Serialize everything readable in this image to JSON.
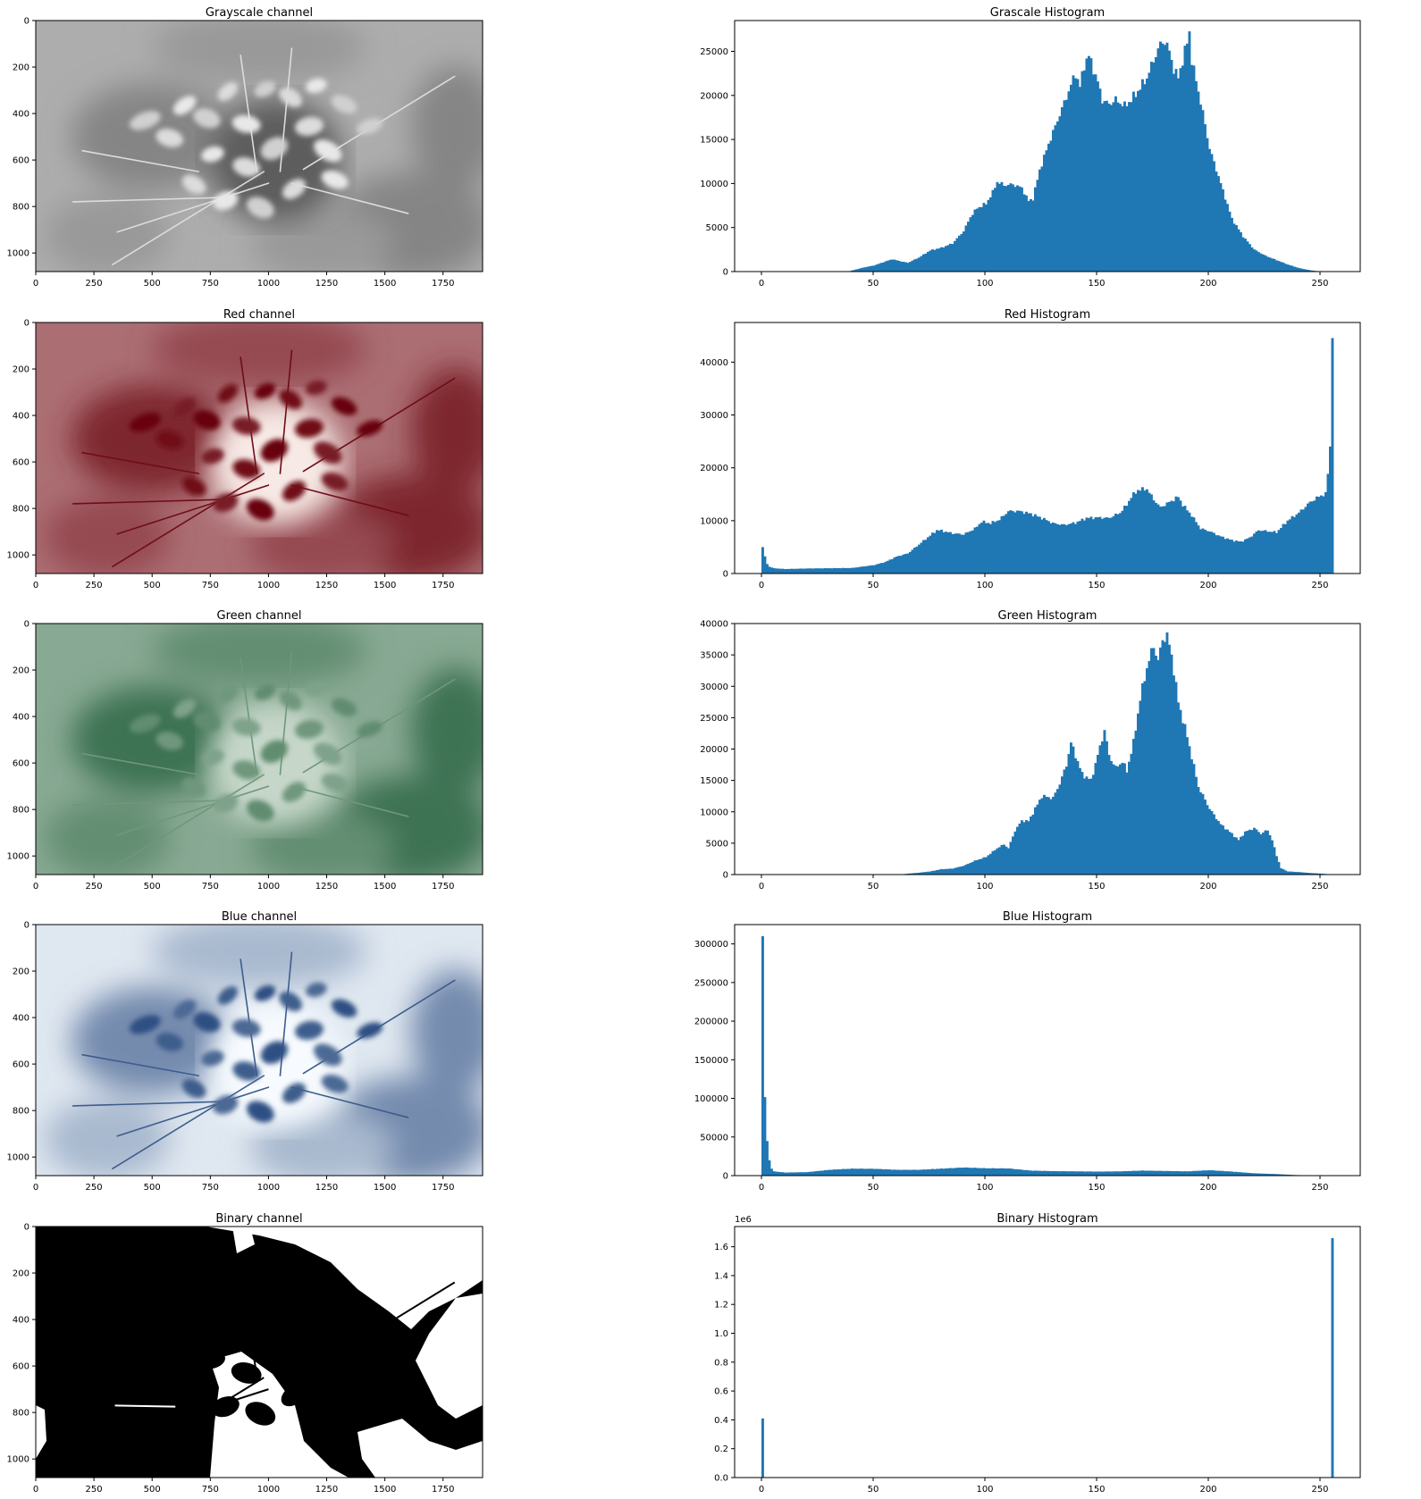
{
  "figure": {
    "image_panels": [
      {
        "title": "Grayscale channel",
        "palette": "gray",
        "colors": [
          "#2a2a2a",
          "#f4f4f4"
        ],
        "xticks": [
          0,
          250,
          500,
          750,
          1000,
          1250,
          1500,
          1750
        ],
        "yticks": [
          0,
          200,
          400,
          600,
          800,
          1000
        ],
        "xlim": [
          0,
          1920
        ],
        "ylim": [
          1080,
          0
        ]
      },
      {
        "title": "Red channel",
        "palette": "red",
        "colors": [
          "#67000d",
          "#fff5f0"
        ],
        "xticks": [
          0,
          250,
          500,
          750,
          1000,
          1250,
          1500,
          1750
        ],
        "yticks": [
          0,
          200,
          400,
          600,
          800,
          1000
        ],
        "xlim": [
          0,
          1920
        ],
        "ylim": [
          1080,
          0
        ]
      },
      {
        "title": "Green channel",
        "palette": "green",
        "colors": [
          "#00441b",
          "#f7fcf5"
        ],
        "xticks": [
          0,
          250,
          500,
          750,
          1000,
          1250,
          1500,
          1750
        ],
        "yticks": [
          0,
          200,
          400,
          600,
          800,
          1000
        ],
        "xlim": [
          0,
          1920
        ],
        "ylim": [
          1080,
          0
        ]
      },
      {
        "title": "Blue channel",
        "palette": "blue",
        "colors": [
          "#08306b",
          "#f7fbff"
        ],
        "xticks": [
          0,
          250,
          500,
          750,
          1000,
          1250,
          1500,
          1750
        ],
        "yticks": [
          0,
          200,
          400,
          600,
          800,
          1000
        ],
        "xlim": [
          0,
          1920
        ],
        "ylim": [
          1080,
          0
        ]
      },
      {
        "title": "Binary channel",
        "palette": "binary",
        "colors": [
          "#000000",
          "#ffffff"
        ],
        "xticks": [
          0,
          250,
          500,
          750,
          1000,
          1250,
          1500,
          1750
        ],
        "yticks": [
          0,
          200,
          400,
          600,
          800,
          1000
        ],
        "xlim": [
          0,
          1920
        ],
        "ylim": [
          1080,
          0
        ]
      }
    ]
  },
  "chart_data": [
    {
      "type": "bar",
      "title": "Grascale Histogram",
      "bar_color": "#1f77b4",
      "xlim": [
        -12,
        268
      ],
      "ylim": [
        0,
        28500
      ],
      "xticks": [
        0,
        50,
        100,
        150,
        200,
        250
      ],
      "yticks": [
        0,
        5000,
        10000,
        15000,
        20000,
        25000
      ],
      "ytick_labels": [
        "0",
        "5000",
        "10000",
        "15000",
        "20000",
        "25000"
      ],
      "offset_label": "",
      "profile": [
        [
          0,
          0
        ],
        [
          38,
          0
        ],
        [
          40,
          120
        ],
        [
          45,
          450
        ],
        [
          50,
          700
        ],
        [
          55,
          1150
        ],
        [
          58,
          1400
        ],
        [
          62,
          1150
        ],
        [
          65,
          1000
        ],
        [
          70,
          1600
        ],
        [
          75,
          2400
        ],
        [
          80,
          2700
        ],
        [
          85,
          3200
        ],
        [
          90,
          4600
        ],
        [
          93,
          6200
        ],
        [
          96,
          7200
        ],
        [
          100,
          7700
        ],
        [
          103,
          9000
        ],
        [
          105,
          10200
        ],
        [
          108,
          9800
        ],
        [
          112,
          9900
        ],
        [
          116,
          9500
        ],
        [
          119,
          8000
        ],
        [
          121,
          8300
        ],
        [
          124,
          11500
        ],
        [
          128,
          14500
        ],
        [
          131,
          16500
        ],
        [
          134,
          18500
        ],
        [
          137,
          20500
        ],
        [
          140,
          22500
        ],
        [
          142,
          21000
        ],
        [
          144,
          23500
        ],
        [
          146,
          24500
        ],
        [
          148,
          23000
        ],
        [
          150,
          21500
        ],
        [
          152,
          19500
        ],
        [
          155,
          19000
        ],
        [
          158,
          19500
        ],
        [
          162,
          18800
        ],
        [
          165,
          19500
        ],
        [
          168,
          20500
        ],
        [
          172,
          22000
        ],
        [
          175,
          24000
        ],
        [
          178,
          25800
        ],
        [
          180,
          26200
        ],
        [
          182,
          25000
        ],
        [
          184,
          23000
        ],
        [
          186,
          22000
        ],
        [
          188,
          24000
        ],
        [
          190,
          26000
        ],
        [
          191,
          27200
        ],
        [
          192,
          24000
        ],
        [
          195,
          20500
        ],
        [
          197,
          18000
        ],
        [
          200,
          14000
        ],
        [
          205,
          10000
        ],
        [
          210,
          6000
        ],
        [
          215,
          4000
        ],
        [
          220,
          2500
        ],
        [
          225,
          1800
        ],
        [
          230,
          1300
        ],
        [
          235,
          800
        ],
        [
          240,
          400
        ],
        [
          245,
          150
        ],
        [
          248,
          60
        ],
        [
          250,
          0
        ],
        [
          255,
          0
        ]
      ]
    },
    {
      "type": "bar",
      "title": "Red Histogram",
      "bar_color": "#1f77b4",
      "xlim": [
        -12,
        268
      ],
      "ylim": [
        0,
        47500
      ],
      "xticks": [
        0,
        50,
        100,
        150,
        200,
        250
      ],
      "yticks": [
        0,
        10000,
        20000,
        30000,
        40000
      ],
      "ytick_labels": [
        "0",
        "10000",
        "20000",
        "30000",
        "40000"
      ],
      "offset_label": "",
      "profile": [
        [
          0,
          5000
        ],
        [
          1,
          3200
        ],
        [
          2,
          1800
        ],
        [
          3,
          1300
        ],
        [
          5,
          1000
        ],
        [
          10,
          850
        ],
        [
          20,
          950
        ],
        [
          30,
          1000
        ],
        [
          40,
          1050
        ],
        [
          50,
          1600
        ],
        [
          55,
          2200
        ],
        [
          60,
          3200
        ],
        [
          65,
          3800
        ],
        [
          70,
          5500
        ],
        [
          75,
          7200
        ],
        [
          78,
          8200
        ],
        [
          80,
          8100
        ],
        [
          85,
          7600
        ],
        [
          90,
          7400
        ],
        [
          95,
          8500
        ],
        [
          98,
          9800
        ],
        [
          102,
          9500
        ],
        [
          106,
          10200
        ],
        [
          110,
          11800
        ],
        [
          115,
          11800
        ],
        [
          120,
          11300
        ],
        [
          125,
          10500
        ],
        [
          130,
          9500
        ],
        [
          135,
          9200
        ],
        [
          140,
          9600
        ],
        [
          145,
          10500
        ],
        [
          150,
          10600
        ],
        [
          155,
          10500
        ],
        [
          160,
          11500
        ],
        [
          163,
          13000
        ],
        [
          165,
          14500
        ],
        [
          168,
          15800
        ],
        [
          172,
          16000
        ],
        [
          175,
          14000
        ],
        [
          178,
          12500
        ],
        [
          182,
          13500
        ],
        [
          186,
          14500
        ],
        [
          188,
          13000
        ],
        [
          192,
          11000
        ],
        [
          196,
          8500
        ],
        [
          200,
          8000
        ],
        [
          205,
          7000
        ],
        [
          210,
          6300
        ],
        [
          214,
          6000
        ],
        [
          218,
          6800
        ],
        [
          222,
          8200
        ],
        [
          226,
          8000
        ],
        [
          230,
          7800
        ],
        [
          235,
          10000
        ],
        [
          240,
          11500
        ],
        [
          245,
          13500
        ],
        [
          250,
          14800
        ],
        [
          252,
          15000
        ],
        [
          253,
          19000
        ],
        [
          254,
          24000
        ],
        [
          255,
          45500
        ]
      ]
    },
    {
      "type": "bar",
      "title": "Green Histogram",
      "bar_color": "#1f77b4",
      "xlim": [
        -12,
        268
      ],
      "ylim": [
        0,
        40000
      ],
      "xticks": [
        0,
        50,
        100,
        150,
        200,
        250
      ],
      "yticks": [
        0,
        5000,
        10000,
        15000,
        20000,
        25000,
        30000,
        35000,
        40000
      ],
      "ytick_labels": [
        "0",
        "5000",
        "10000",
        "15000",
        "20000",
        "25000",
        "30000",
        "35000",
        "40000"
      ],
      "offset_label": "",
      "profile": [
        [
          0,
          0
        ],
        [
          62,
          0
        ],
        [
          65,
          150
        ],
        [
          70,
          300
        ],
        [
          75,
          500
        ],
        [
          80,
          850
        ],
        [
          85,
          950
        ],
        [
          90,
          1400
        ],
        [
          95,
          2200
        ],
        [
          100,
          2800
        ],
        [
          105,
          4200
        ],
        [
          108,
          4800
        ],
        [
          110,
          4200
        ],
        [
          113,
          7000
        ],
        [
          116,
          8600
        ],
        [
          119,
          8500
        ],
        [
          122,
          10500
        ],
        [
          125,
          12500
        ],
        [
          130,
          12200
        ],
        [
          133,
          14500
        ],
        [
          136,
          17500
        ],
        [
          138,
          21000
        ],
        [
          140,
          19000
        ],
        [
          143,
          16000
        ],
        [
          147,
          15000
        ],
        [
          150,
          19000
        ],
        [
          153,
          23000
        ],
        [
          155,
          19000
        ],
        [
          158,
          17000
        ],
        [
          161,
          18000
        ],
        [
          163,
          16500
        ],
        [
          166,
          21000
        ],
        [
          169,
          28000
        ],
        [
          172,
          33000
        ],
        [
          175,
          36500
        ],
        [
          177,
          34000
        ],
        [
          179,
          37500
        ],
        [
          181,
          38000
        ],
        [
          183,
          35000
        ],
        [
          186,
          27500
        ],
        [
          190,
          22000
        ],
        [
          195,
          14000
        ],
        [
          200,
          10500
        ],
        [
          205,
          8000
        ],
        [
          210,
          6500
        ],
        [
          213,
          5500
        ],
        [
          216,
          6800
        ],
        [
          220,
          7400
        ],
        [
          223,
          6500
        ],
        [
          226,
          7100
        ],
        [
          228,
          5500
        ],
        [
          230,
          3000
        ],
        [
          232,
          1000
        ],
        [
          235,
          500
        ],
        [
          240,
          400
        ],
        [
          245,
          250
        ],
        [
          250,
          150
        ],
        [
          255,
          0
        ]
      ]
    },
    {
      "type": "bar",
      "title": "Blue Histogram",
      "bar_color": "#1f77b4",
      "xlim": [
        -12,
        268
      ],
      "ylim": [
        0,
        325000
      ],
      "xticks": [
        0,
        50,
        100,
        150,
        200,
        250
      ],
      "yticks": [
        0,
        50000,
        100000,
        150000,
        200000,
        250000,
        300000
      ],
      "ytick_labels": [
        "0",
        "50000",
        "100000",
        "150000",
        "200000",
        "250000",
        "300000"
      ],
      "offset_label": "",
      "profile": [
        [
          0,
          310000
        ],
        [
          1,
          100000
        ],
        [
          2,
          45000
        ],
        [
          3,
          20000
        ],
        [
          4,
          9000
        ],
        [
          5,
          5500
        ],
        [
          10,
          4000
        ],
        [
          20,
          4500
        ],
        [
          30,
          7500
        ],
        [
          40,
          9000
        ],
        [
          50,
          8800
        ],
        [
          60,
          7500
        ],
        [
          70,
          7500
        ],
        [
          80,
          9000
        ],
        [
          90,
          10500
        ],
        [
          100,
          9500
        ],
        [
          110,
          9300
        ],
        [
          120,
          6500
        ],
        [
          130,
          5800
        ],
        [
          140,
          5500
        ],
        [
          150,
          5200
        ],
        [
          160,
          5500
        ],
        [
          170,
          6500
        ],
        [
          180,
          6000
        ],
        [
          190,
          5500
        ],
        [
          200,
          7000
        ],
        [
          210,
          5200
        ],
        [
          220,
          3000
        ],
        [
          230,
          2000
        ],
        [
          238,
          800
        ],
        [
          245,
          200
        ],
        [
          250,
          0
        ],
        [
          255,
          0
        ]
      ]
    },
    {
      "type": "bar",
      "title": "Binary Histogram",
      "bar_color": "#1f77b4",
      "xlim": [
        -12,
        268
      ],
      "ylim": [
        0,
        1740000
      ],
      "xticks": [
        0,
        50,
        100,
        150,
        200,
        250
      ],
      "yticks": [
        0,
        200000,
        400000,
        600000,
        800000,
        1000000,
        1200000,
        1400000,
        1600000
      ],
      "ytick_labels": [
        "0.0",
        "0.2",
        "0.4",
        "0.6",
        "0.8",
        "1.0",
        "1.2",
        "1.4",
        "1.6"
      ],
      "offset_label": "1e6",
      "profile": [
        [
          0,
          410000
        ],
        [
          1,
          0
        ],
        [
          254,
          0
        ],
        [
          255,
          1660000
        ]
      ]
    }
  ]
}
